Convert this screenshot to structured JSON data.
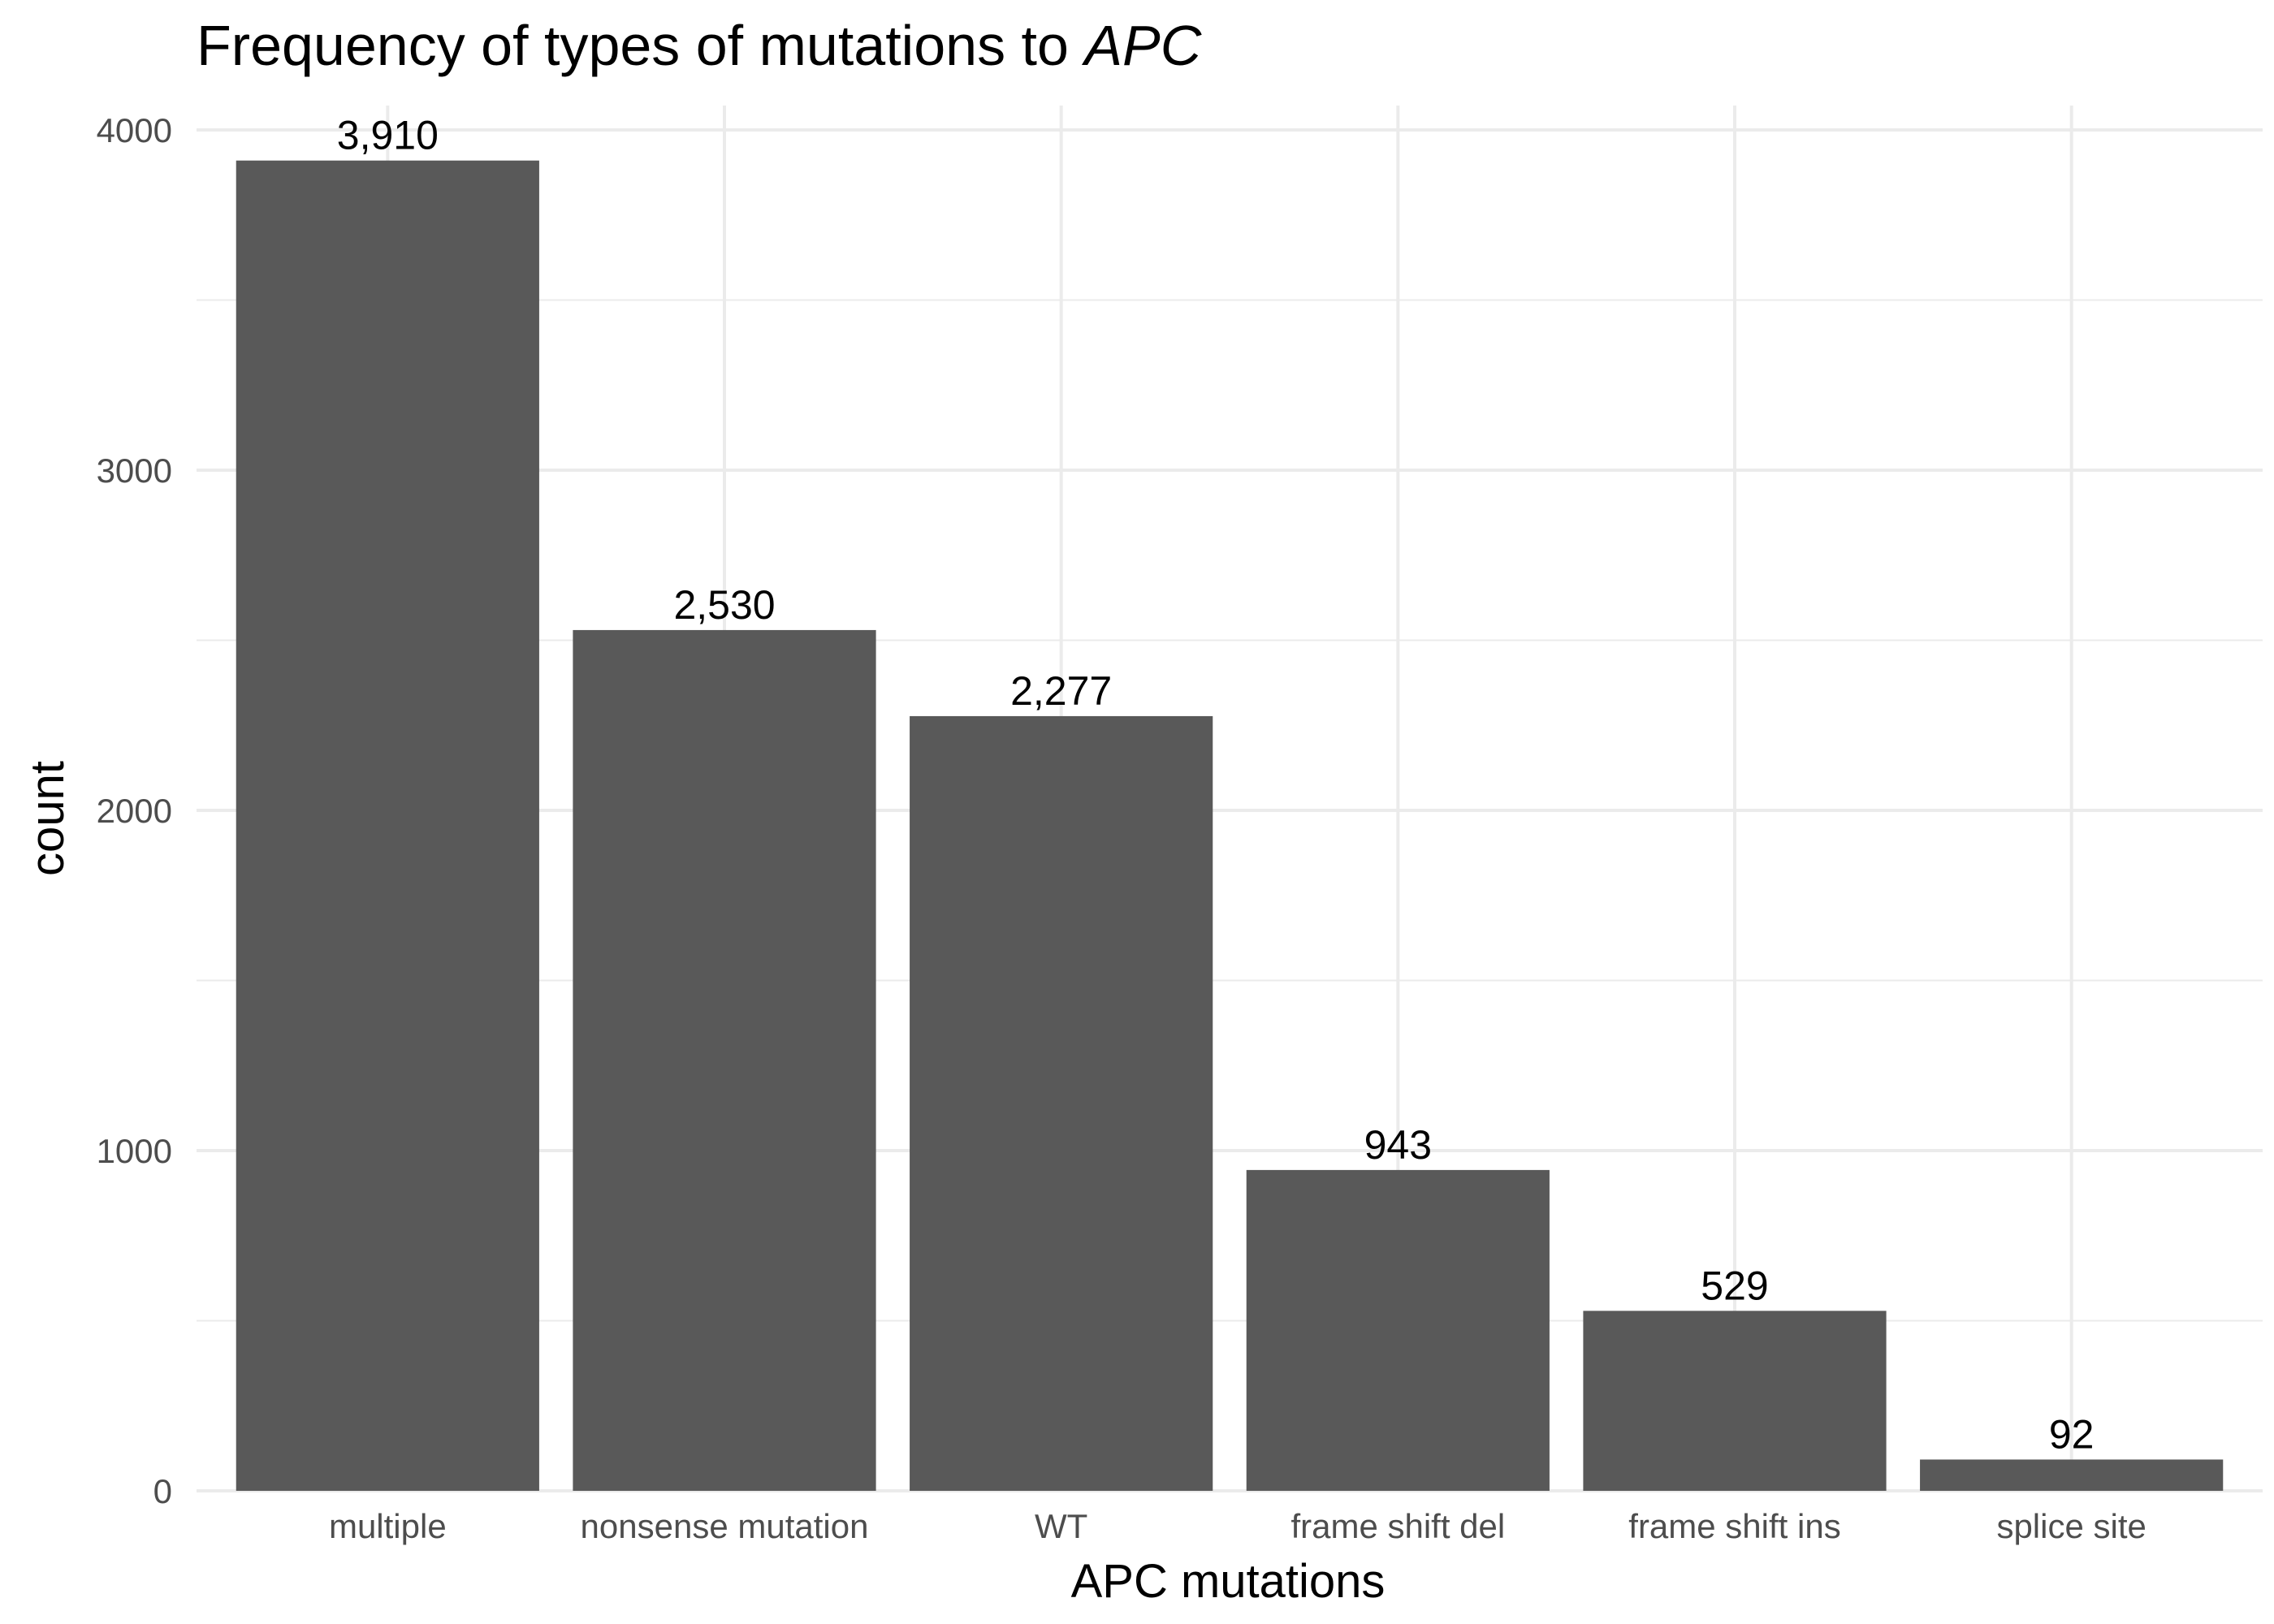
{
  "chart_data": {
    "type": "bar",
    "title": "Frequency of types of mutations to ",
    "title_italic": "APC",
    "xlabel": "APC mutations",
    "ylabel": "count",
    "categories": [
      "multiple",
      "nonsense mutation",
      "WT",
      "frame shift del",
      "frame shift ins",
      "splice site"
    ],
    "values": [
      3910,
      2530,
      2277,
      943,
      529,
      92
    ],
    "data_labels": [
      "3,910",
      "2,530",
      "2,277",
      "943",
      "529",
      "92"
    ],
    "y_ticks": [
      0,
      1000,
      2000,
      3000,
      4000
    ],
    "y_tick_labels": [
      "0",
      "1000",
      "2000",
      "3000",
      "4000"
    ],
    "ylim": [
      0,
      4000
    ],
    "grid": true,
    "bar_color": "#595959",
    "grid_color": "#ebebeb"
  }
}
